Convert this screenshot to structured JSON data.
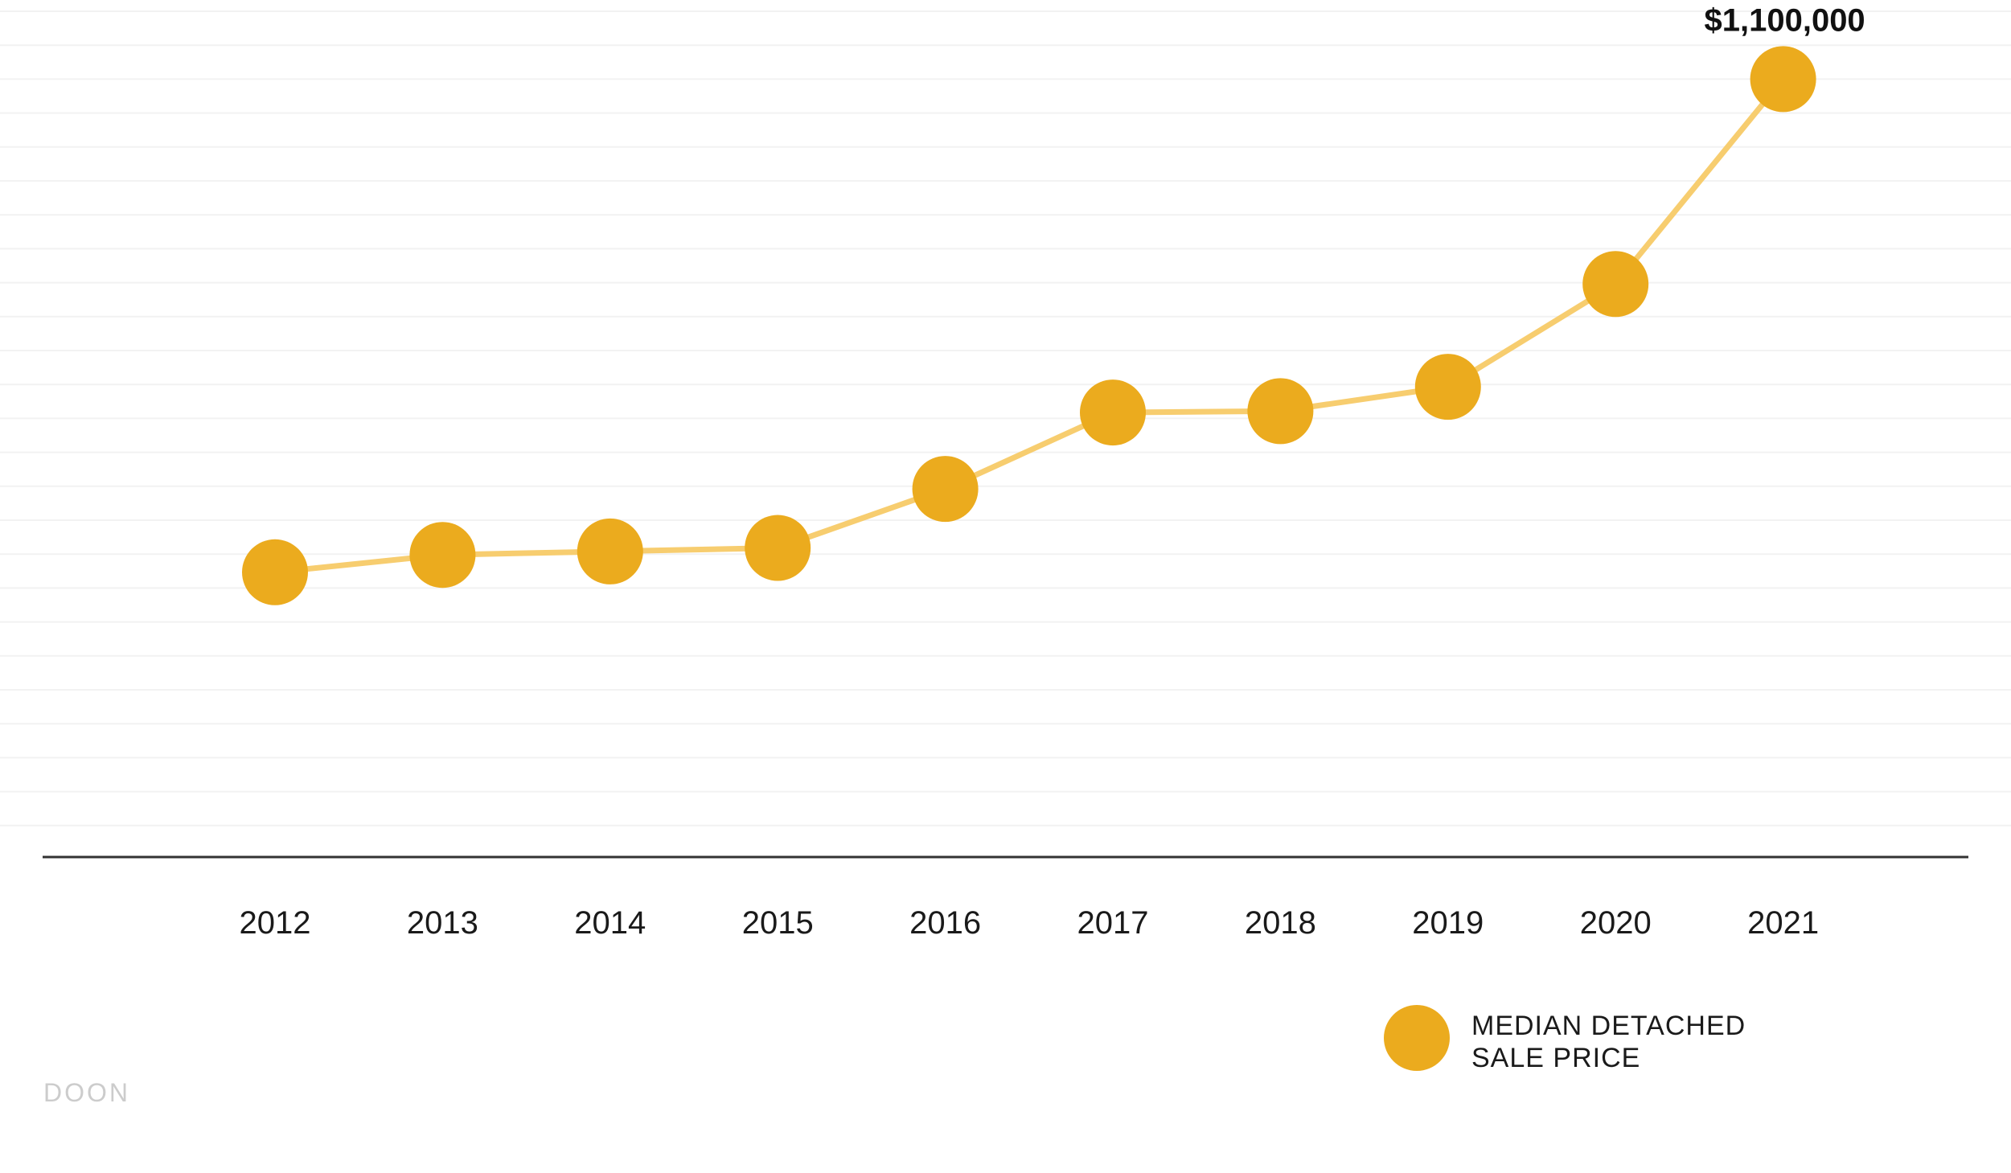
{
  "chart_data": {
    "type": "line",
    "categories": [
      "2012",
      "2013",
      "2014",
      "2015",
      "2016",
      "2017",
      "2018",
      "2019",
      "2020",
      "2021"
    ],
    "series": [
      {
        "name": "MEDIAN DETACHED SALE PRICE",
        "values": [
          390000,
          415000,
          420000,
          425000,
          510000,
          620000,
          622000,
          657000,
          805000,
          1100000
        ]
      }
    ],
    "annotation": {
      "category": "2021",
      "text": "$1,100,000"
    },
    "legend": {
      "lines": [
        "MEDIAN DETACHED",
        "SALE PRICE"
      ],
      "position": "bottom-right"
    },
    "ylim": [
      -20000,
      1200000
    ],
    "grid": true,
    "colors": {
      "marker": "#ebab1e",
      "line": "#f7cd6f",
      "grid": "#f2f2f2",
      "axis": "#333333"
    }
  },
  "branding": {
    "text": "DOON"
  }
}
